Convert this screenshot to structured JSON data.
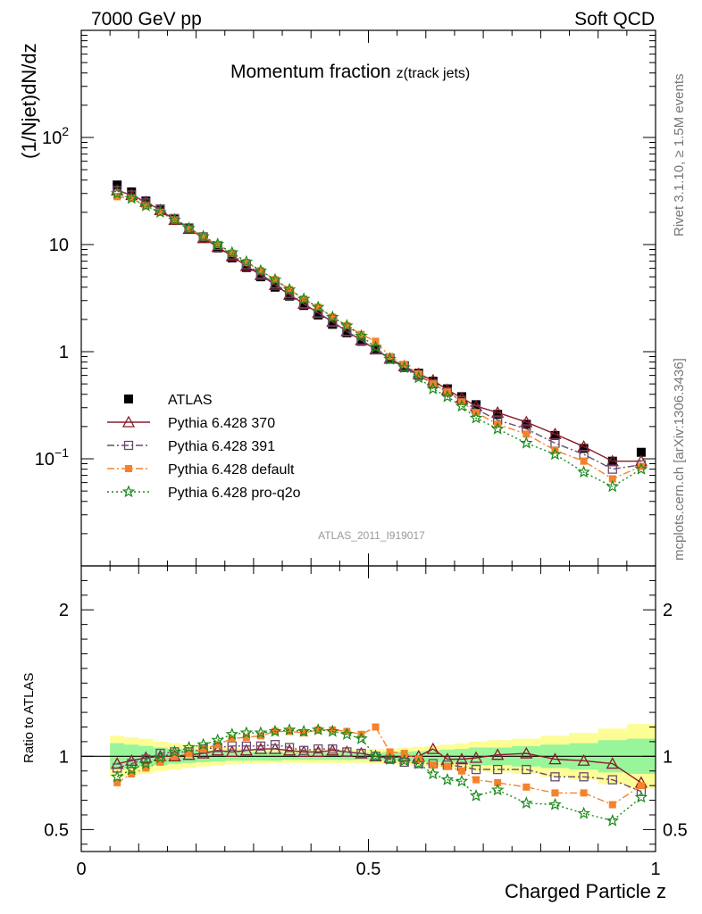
{
  "header": {
    "left": "7000 GeV pp",
    "right": "Soft QCD"
  },
  "side": {
    "rivet": "Rivet 3.1.10, ≥ 1.5M events",
    "mcplots": "mcplots.cern.ch [arXiv:1306.3436]"
  },
  "analysis_id": "ATLAS_2011_I919017",
  "chart_data": [
    {
      "type": "line",
      "title": "Momentum fraction ",
      "title_sub": "z(track jets)",
      "ylabel": "(1/Njet)dN/dz",
      "xlabel": "",
      "xlim": [
        0,
        1
      ],
      "ylim": [
        0.01,
        1000
      ],
      "yscale": "log",
      "y_ticks": [
        {
          "v": 0.1,
          "base": "10",
          "exp": "−1"
        },
        {
          "v": 1,
          "base": "1",
          "exp": ""
        },
        {
          "v": 10,
          "base": "10",
          "exp": ""
        },
        {
          "v": 100,
          "base": "10",
          "exp": "2"
        }
      ],
      "legend_position": "middle-left",
      "x": [
        0.0625,
        0.0875,
        0.1125,
        0.1375,
        0.1625,
        0.1875,
        0.2125,
        0.2375,
        0.2625,
        0.2875,
        0.3125,
        0.3375,
        0.3625,
        0.3875,
        0.4125,
        0.4375,
        0.4625,
        0.4875,
        0.5125,
        0.5375,
        0.5625,
        0.5875,
        0.6125,
        0.6375,
        0.6625,
        0.6875,
        0.725,
        0.775,
        0.825,
        0.875,
        0.925,
        0.975
      ],
      "series": [
        {
          "name": "ATLAS",
          "color": "#000000",
          "marker": "square",
          "values": [
            36,
            31,
            25.5,
            21,
            17.2,
            14,
            11.4,
            9.3,
            7.5,
            6.1,
            5.0,
            4.0,
            3.3,
            2.7,
            2.2,
            1.8,
            1.5,
            1.25,
            1.05,
            0.87,
            0.74,
            0.63,
            0.53,
            0.45,
            0.38,
            0.32,
            0.26,
            0.21,
            0.165,
            0.125,
            0.095,
            0.115
          ]
        },
        {
          "name": "Pythia 6.428 370",
          "color": "#8b1a2b",
          "marker": "triangle",
          "dash": "",
          "values": [
            32,
            29,
            25,
            21,
            17,
            14,
            11.5,
            9.5,
            7.8,
            6.3,
            5.2,
            4.2,
            3.4,
            2.8,
            2.3,
            1.9,
            1.55,
            1.28,
            1.05,
            0.86,
            0.73,
            0.62,
            0.54,
            0.44,
            0.37,
            0.31,
            0.27,
            0.22,
            0.17,
            0.13,
            0.095,
            0.095
          ]
        },
        {
          "name": "Pythia 6.428 391",
          "color": "#6a4a6e",
          "marker": "open-square",
          "dash": "8,3,2,3",
          "values": [
            32,
            29,
            24.5,
            21.5,
            17.5,
            14.3,
            11.8,
            9.8,
            8.0,
            6.5,
            5.3,
            4.3,
            3.5,
            2.8,
            2.3,
            1.9,
            1.55,
            1.28,
            1.05,
            0.85,
            0.71,
            0.6,
            0.5,
            0.42,
            0.35,
            0.29,
            0.23,
            0.19,
            0.14,
            0.11,
            0.08,
            0.088
          ]
        },
        {
          "name": "Pythia 6.428 default",
          "color": "#f5822a",
          "marker": "filled-square",
          "dash": "8,3,2,3",
          "values": [
            28,
            27,
            23,
            20,
            17,
            14,
            11.8,
            10,
            8.3,
            6.8,
            5.7,
            4.7,
            3.8,
            3.1,
            2.6,
            2.1,
            1.75,
            1.45,
            1.25,
            0.9,
            0.76,
            0.62,
            0.5,
            0.42,
            0.34,
            0.27,
            0.21,
            0.17,
            0.12,
            0.095,
            0.065,
            0.085
          ]
        },
        {
          "name": "Pythia 6.428 pro-q2o",
          "color": "#1a8a1a",
          "marker": "star",
          "dash": "2,3",
          "values": [
            30,
            27,
            23,
            20,
            17,
            14.2,
            11.9,
            10.1,
            8.4,
            6.9,
            5.7,
            4.7,
            3.8,
            3.1,
            2.6,
            2.1,
            1.75,
            1.4,
            1.1,
            0.85,
            0.71,
            0.57,
            0.45,
            0.38,
            0.31,
            0.24,
            0.19,
            0.14,
            0.11,
            0.075,
            0.055,
            0.08
          ]
        }
      ]
    },
    {
      "type": "line",
      "ylabel": "Ratio to ATLAS",
      "xlabel": "Charged Particle z",
      "xlim": [
        0,
        1
      ],
      "ylim": [
        0.35,
        2.3
      ],
      "x_ticks": [
        "0",
        "0.5",
        "1"
      ],
      "y_ticks": [
        "0.5",
        "1",
        "2"
      ],
      "band_inner_hw": [
        0.09,
        0.08,
        0.07,
        0.06,
        0.05,
        0.045,
        0.04,
        0.035,
        0.03,
        0.03,
        0.03,
        0.03,
        0.025,
        0.025,
        0.025,
        0.025,
        0.025,
        0.025,
        0.025,
        0.03,
        0.03,
        0.035,
        0.04,
        0.045,
        0.05,
        0.06,
        0.06,
        0.07,
        0.08,
        0.09,
        0.11,
        0.12
      ],
      "band_outer_hw": [
        0.14,
        0.13,
        0.12,
        0.1,
        0.09,
        0.08,
        0.07,
        0.06,
        0.055,
        0.05,
        0.05,
        0.045,
        0.045,
        0.045,
        0.045,
        0.045,
        0.045,
        0.045,
        0.05,
        0.05,
        0.06,
        0.065,
        0.07,
        0.08,
        0.09,
        0.1,
        0.11,
        0.12,
        0.14,
        0.16,
        0.19,
        0.22
      ],
      "series": [
        {
          "name": "Pythia 6.428 370",
          "values": [
            0.95,
            0.97,
            0.99,
            1.0,
            1.0,
            1.01,
            1.02,
            1.04,
            1.03,
            1.04,
            1.05,
            1.05,
            1.04,
            1.03,
            1.03,
            1.04,
            1.03,
            1.02,
            1.0,
            0.99,
            1.0,
            1.0,
            1.05,
            0.98,
            0.98,
            0.99,
            1.01,
            1.02,
            0.98,
            0.97,
            0.95,
            0.82
          ]
        },
        {
          "name": "Pythia 6.428 391",
          "values": [
            0.92,
            0.95,
            0.98,
            1.02,
            1.03,
            1.03,
            1.05,
            1.06,
            1.07,
            1.07,
            1.07,
            1.08,
            1.06,
            1.04,
            1.05,
            1.05,
            1.03,
            1.02,
            1.0,
            0.98,
            0.96,
            0.95,
            0.95,
            0.94,
            0.93,
            0.91,
            0.91,
            0.91,
            0.86,
            0.86,
            0.84,
            0.76
          ]
        },
        {
          "name": "Pythia 6.428 default",
          "values": [
            0.82,
            0.88,
            0.92,
            0.96,
            1.0,
            1.02,
            1.05,
            1.08,
            1.12,
            1.13,
            1.14,
            1.17,
            1.17,
            1.16,
            1.18,
            1.18,
            1.17,
            1.15,
            1.2,
            1.03,
            1.02,
            0.98,
            0.94,
            0.93,
            0.9,
            0.84,
            0.82,
            0.79,
            0.75,
            0.75,
            0.67,
            0.8
          ]
        },
        {
          "name": "Pythia 6.428 pro-q2o",
          "values": [
            0.86,
            0.91,
            0.95,
            0.99,
            1.03,
            1.06,
            1.08,
            1.11,
            1.15,
            1.16,
            1.16,
            1.17,
            1.18,
            1.17,
            1.18,
            1.17,
            1.15,
            1.12,
            1.0,
            0.98,
            0.97,
            0.95,
            0.88,
            0.84,
            0.83,
            0.73,
            0.77,
            0.68,
            0.67,
            0.61,
            0.56,
            0.72
          ]
        }
      ]
    }
  ]
}
